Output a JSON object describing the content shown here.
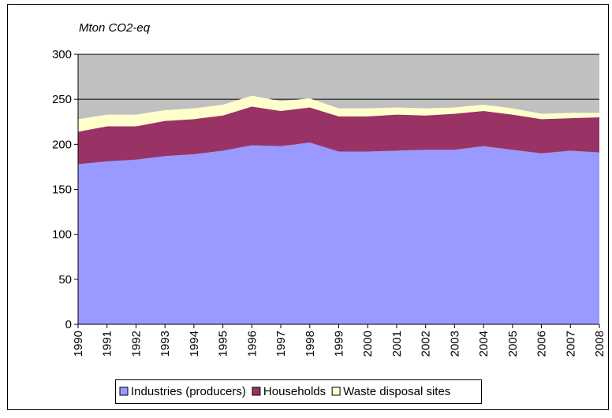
{
  "chart_data": {
    "type": "stacked-area",
    "y_label": "Mton CO2-eq",
    "categories": [
      "1990",
      "1991",
      "1992",
      "1993",
      "1994",
      "1995",
      "1996",
      "1997",
      "1998",
      "1999",
      "2000",
      "2001",
      "2002",
      "2003",
      "2004",
      "2005",
      "2006",
      "2007",
      "2008"
    ],
    "series": [
      {
        "name": "Industries (producers)",
        "color": "#9999ff",
        "values": [
          178,
          181,
          183,
          187,
          189,
          193,
          199,
          198,
          202,
          192,
          192,
          193,
          194,
          194,
          198,
          194,
          190,
          193,
          191
        ]
      },
      {
        "name": "Households",
        "color": "#993366",
        "values": [
          36,
          39,
          37,
          39,
          39,
          39,
          43,
          39,
          39,
          39,
          39,
          40,
          38,
          40,
          39,
          39,
          38,
          36,
          39
        ]
      },
      {
        "name": "Waste disposal sites",
        "color": "#ffffcc",
        "values": [
          14,
          13,
          13,
          12,
          12,
          12,
          12,
          11,
          10,
          9,
          9,
          8,
          8,
          7,
          7,
          7,
          6,
          6,
          5
        ]
      }
    ],
    "ylim": [
      0,
      300
    ],
    "yticks": [
      0,
      50,
      100,
      150,
      200,
      250,
      300
    ],
    "grid": true,
    "plot_background": "#c0c0c0"
  }
}
